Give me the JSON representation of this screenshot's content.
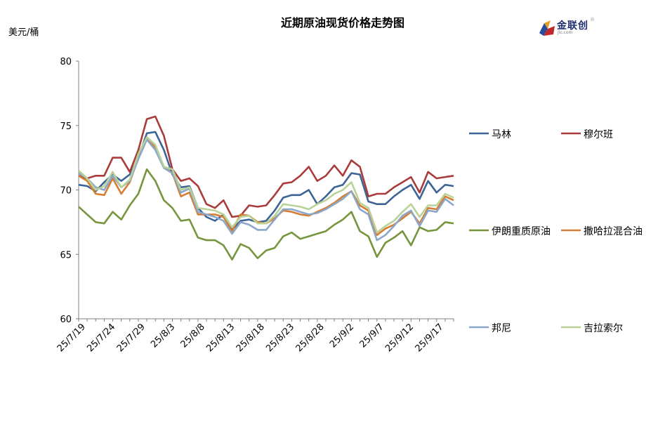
{
  "brand": {
    "name": "金联创",
    "website": "jlc.com"
  },
  "chart_data": {
    "type": "line",
    "title": "近期原油现货价格走势图",
    "ylabel": "美元/桶",
    "xlabel": "",
    "ylim": [
      60,
      80
    ],
    "yticks": [
      60,
      65,
      70,
      75,
      80
    ],
    "x": [
      "25/7/18",
      "25/7/21",
      "25/7/22",
      "25/7/23",
      "25/7/24",
      "25/7/25",
      "25/7/28",
      "25/7/29",
      "25/7/30",
      "25/7/31",
      "25/8/1",
      "25/8/4",
      "25/8/5",
      "25/8/6",
      "25/8/7",
      "25/8/8",
      "25/8/11",
      "25/8/12",
      "25/8/13",
      "25/8/14",
      "25/8/15",
      "25/8/18",
      "25/8/19",
      "25/8/20",
      "25/8/21",
      "25/8/22",
      "25/8/25",
      "25/8/26",
      "25/8/27",
      "25/8/28",
      "25/8/29",
      "25/9/1",
      "25/9/2",
      "25/9/3",
      "25/9/4",
      "25/9/5",
      "25/9/8",
      "25/9/9",
      "25/9/10",
      "25/9/11",
      "25/9/12",
      "25/9/15",
      "25/9/16",
      "25/9/17",
      "25/9/18"
    ],
    "xticks": [
      "25/7/19",
      "25/7/24",
      "25/7/29",
      "25/8/3",
      "25/8/8",
      "25/8/13",
      "25/8/18",
      "25/8/23",
      "25/8/28",
      "25/9/2",
      "25/9/7",
      "25/9/12",
      "25/9/17"
    ],
    "series": [
      {
        "name": "马林",
        "color": "#3c6497",
        "values": [
          70.4,
          70.3,
          69.9,
          70.6,
          71.2,
          70.7,
          71.2,
          72.5,
          74.4,
          74.5,
          73.1,
          71.2,
          70.2,
          70.3,
          68.6,
          67.9,
          67.6,
          68.1,
          66.9,
          67.6,
          67.7,
          67.5,
          67.6,
          68.4,
          69.4,
          69.6,
          69.6,
          70.0,
          68.9,
          69.5,
          70.2,
          70.4,
          71.3,
          71.2,
          69.1,
          68.9,
          68.9,
          69.5,
          70.0,
          70.4,
          69.3,
          70.7,
          69.8,
          70.4,
          70.3
        ]
      },
      {
        "name": "穆尔班",
        "color": "#a93c3b",
        "values": [
          71.1,
          70.9,
          71.1,
          71.1,
          72.5,
          72.5,
          71.4,
          73.1,
          75.5,
          75.7,
          74.2,
          71.6,
          70.7,
          70.9,
          70.3,
          68.9,
          68.6,
          69.2,
          67.9,
          68.0,
          68.8,
          68.7,
          68.8,
          69.6,
          70.5,
          70.6,
          71.1,
          71.8,
          70.7,
          71.1,
          71.9,
          71.1,
          72.3,
          71.8,
          69.5,
          69.7,
          69.7,
          70.2,
          70.6,
          71.0,
          69.8,
          71.4,
          70.9,
          71.0,
          71.1
        ]
      },
      {
        "name": "伊朗重质原油",
        "color": "#76953d",
        "values": [
          68.7,
          68.1,
          67.5,
          67.4,
          68.3,
          67.7,
          68.8,
          69.7,
          71.6,
          70.7,
          69.2,
          68.6,
          67.6,
          67.7,
          66.3,
          66.1,
          66.1,
          65.7,
          64.6,
          65.8,
          65.5,
          64.7,
          65.3,
          65.5,
          66.4,
          66.7,
          66.2,
          66.4,
          66.6,
          66.8,
          67.3,
          67.7,
          68.3,
          66.8,
          66.4,
          64.8,
          65.9,
          66.3,
          66.8,
          65.7,
          67.1,
          66.8,
          66.9,
          67.5,
          67.4
        ]
      },
      {
        "name": "撒哈拉混合油",
        "color": "#d57e33",
        "values": [
          71.1,
          70.7,
          69.7,
          69.6,
          70.9,
          69.7,
          70.6,
          72.5,
          74.1,
          73.3,
          71.8,
          71.3,
          69.5,
          69.8,
          68.1,
          68.1,
          68.1,
          67.9,
          66.8,
          68.1,
          68.0,
          67.5,
          67.4,
          67.8,
          68.4,
          68.3,
          68.1,
          68.0,
          68.3,
          68.6,
          69.0,
          69.5,
          69.9,
          68.8,
          68.4,
          66.5,
          67.0,
          67.3,
          67.8,
          68.3,
          67.4,
          68.6,
          68.5,
          69.5,
          69.2
        ]
      },
      {
        "name": "邦尼",
        "color": "#8ba7c9",
        "values": [
          71.3,
          70.9,
          70.2,
          70.0,
          71.1,
          70.2,
          70.7,
          72.4,
          73.9,
          73.1,
          71.7,
          71.3,
          69.8,
          70.1,
          68.3,
          68.1,
          67.9,
          67.6,
          66.6,
          67.5,
          67.3,
          66.9,
          66.9,
          67.7,
          68.5,
          68.5,
          68.3,
          68.1,
          68.2,
          68.5,
          68.9,
          69.3,
          69.9,
          68.5,
          68.1,
          66.1,
          66.5,
          67.2,
          68.0,
          68.4,
          67.2,
          68.4,
          68.3,
          69.3,
          68.8
        ]
      },
      {
        "name": "吉拉索尔",
        "color": "#b9d297",
        "values": [
          71.5,
          70.9,
          70.0,
          70.3,
          71.4,
          70.2,
          70.8,
          72.8,
          74.1,
          73.5,
          71.8,
          71.6,
          70.0,
          70.2,
          68.6,
          68.5,
          68.4,
          68.1,
          67.1,
          67.9,
          68.0,
          67.4,
          67.4,
          68.0,
          68.9,
          68.8,
          68.7,
          68.5,
          68.9,
          69.2,
          69.7,
          70.0,
          70.6,
          69.0,
          68.6,
          66.7,
          67.2,
          67.6,
          68.3,
          68.9,
          67.9,
          68.8,
          68.8,
          69.7,
          69.4
        ]
      }
    ],
    "legend_position": "right",
    "grid": false
  }
}
